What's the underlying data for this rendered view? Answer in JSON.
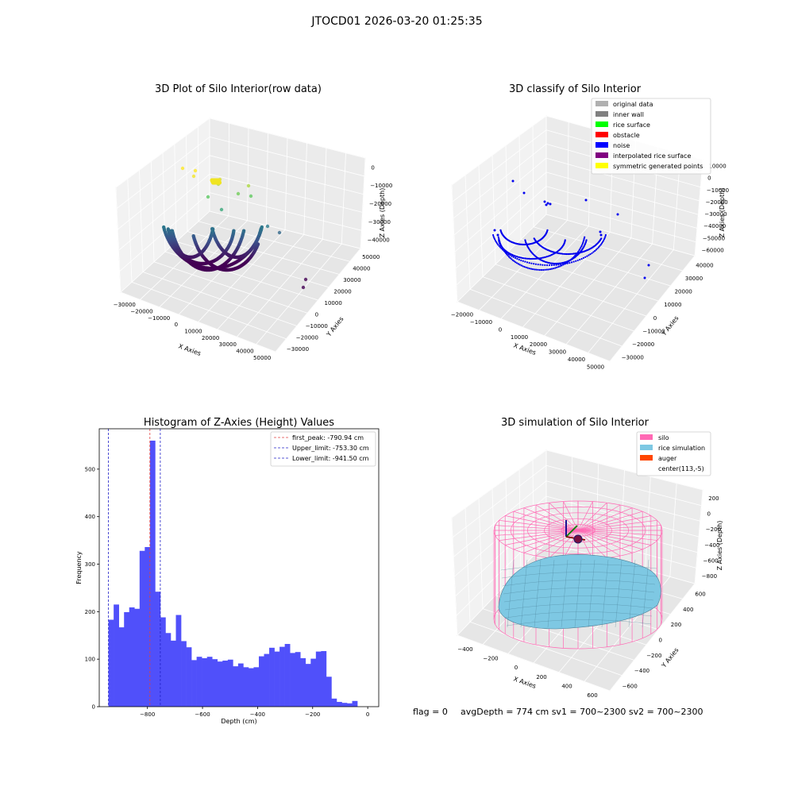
{
  "suptitle": "JTOCD01 2026-03-20 01:25:35",
  "footer": {
    "flag": "flag = 0",
    "metrics": "avgDepth = 774 cm  sv1 = 700~2300  sv2 = 700~2300"
  },
  "colors": {
    "hist_bar": "#5050fa",
    "first_peak": "#e04040",
    "limits": "#2020c8",
    "noise": "#0000ee",
    "silo": "#ff69b4",
    "rice": "#7ec8e3",
    "auger": "#ff4500"
  },
  "chart_data": [
    {
      "type": "scatter",
      "title": "3D Plot of Silo Interior(row data)",
      "xlabel": "X Axies",
      "ylabel": "Y Axies",
      "zlabel": "Z Axies (Depth)",
      "x_ticks": [
        "−30000",
        "−20000",
        "−10000",
        "0",
        "10000",
        "20000",
        "30000",
        "40000",
        "50000"
      ],
      "y_ticks": [
        "−30000",
        "−20000",
        "−10000",
        "0",
        "10000",
        "20000",
        "30000",
        "40000",
        "50000"
      ],
      "z_ticks": [
        "−40000",
        "−30000",
        "−20000",
        "−10000",
        "0"
      ],
      "colormap": "viridis"
    },
    {
      "type": "scatter",
      "title": "3D classify of Silo Interior",
      "xlabel": "X Axies",
      "ylabel": "Y Axies",
      "zlabel": "Z Axies (Depth)",
      "x_ticks": [
        "−20000",
        "−10000",
        "0",
        "10000",
        "20000",
        "30000",
        "40000",
        "50000"
      ],
      "y_ticks": [
        "−30000",
        "−20000",
        "−10000",
        "0",
        "10000",
        "20000",
        "30000",
        "40000"
      ],
      "z_ticks": [
        "−60000",
        "−50000",
        "−40000",
        "−30000",
        "−20000",
        "−10000",
        "0",
        "10000"
      ],
      "legend": [
        {
          "label": "original data",
          "color": "#b0b0b0"
        },
        {
          "label": "inner wall",
          "color": "#808080"
        },
        {
          "label": "rice surface",
          "color": "#00ff00"
        },
        {
          "label": "obstacle",
          "color": "#ff0000"
        },
        {
          "label": "noise",
          "color": "#0000ff"
        },
        {
          "label": "interpolated rice surface",
          "color": "#800080"
        },
        {
          "label": "symmetric generated points",
          "color": "#ffff00"
        }
      ]
    },
    {
      "type": "bar",
      "title": "Histogram of Z-Axies (Height) Values",
      "xlabel": "Depth (cm)",
      "ylabel": "Frequency",
      "xlim": [
        -975,
        40
      ],
      "ylim": [
        0,
        585
      ],
      "x_ticks": [
        -800,
        -600,
        -400,
        -200,
        0
      ],
      "y_ticks": [
        0,
        100,
        200,
        300,
        400,
        500
      ],
      "bin_start": -941.5,
      "bin_width": 18.83,
      "values": [
        183,
        215,
        167,
        199,
        209,
        206,
        328,
        336,
        560,
        242,
        188,
        155,
        139,
        193,
        138,
        125,
        98,
        105,
        102,
        105,
        100,
        95,
        97,
        99,
        85,
        91,
        83,
        81,
        83,
        106,
        111,
        124,
        116,
        126,
        132,
        113,
        115,
        102,
        90,
        101,
        116,
        117,
        63,
        17,
        10,
        8,
        7,
        12
      ],
      "vlines": [
        {
          "label": "first_peak: -790.94 cm",
          "x": -790.94,
          "color": "#e04040"
        },
        {
          "label": "Upper_limit: -753.30 cm",
          "x": -753.3,
          "color": "#2020c8"
        },
        {
          "label": "Lower_limit: -941.50 cm",
          "x": -941.5,
          "color": "#2020c8"
        }
      ]
    },
    {
      "type": "surface",
      "title": "3D simulation of Silo Interior",
      "xlabel": "X Axies",
      "ylabel": "Y Axies",
      "zlabel": "Z Axies (Depth)",
      "x_ticks": [
        "−400",
        "−200",
        "0",
        "200",
        "400",
        "600"
      ],
      "y_ticks": [
        "−600",
        "−400",
        "−200",
        "0",
        "200",
        "400",
        "600"
      ],
      "z_ticks": [
        "−800",
        "−600",
        "−400",
        "−200",
        "0",
        "200"
      ],
      "legend": [
        {
          "label": "silo",
          "color": "#ff69b4"
        },
        {
          "label": "rice simulation",
          "color": "#7ec8e3"
        },
        {
          "label": "auger",
          "color": "#ff4500"
        },
        {
          "label": "center(113,-5)",
          "color": ""
        }
      ]
    }
  ]
}
